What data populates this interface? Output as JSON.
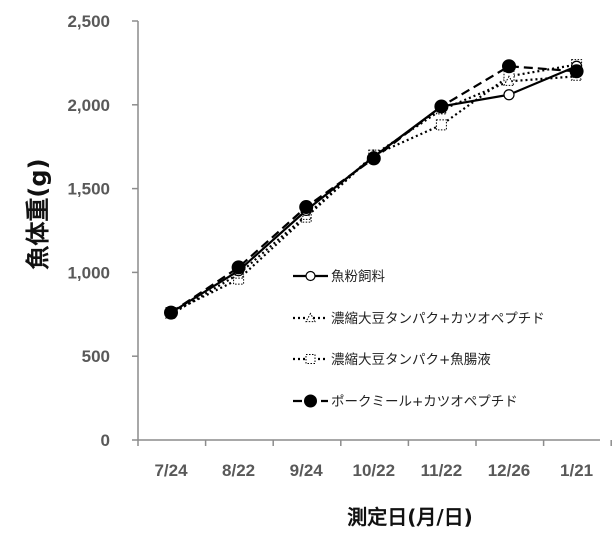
{
  "chart_data": {
    "type": "line",
    "xlabel": "測定日(月/日)",
    "ylabel": "魚体重(g)",
    "categories": [
      "7/24",
      "8/22",
      "9/24",
      "10/22",
      "11/22",
      "12/26",
      "1/21"
    ],
    "ylim": [
      0,
      2500
    ],
    "yticks": [
      0,
      500,
      1000,
      1500,
      2000,
      2500
    ],
    "ytick_labels": [
      "0",
      "500",
      "1,000",
      "1,500",
      "2,000",
      "2,500"
    ],
    "grid": false,
    "legend_position": "center-right",
    "series": [
      {
        "name": "魚粉飼料",
        "values": [
          760,
          1010,
          1370,
          1690,
          1990,
          2060,
          2230
        ],
        "line": "solid",
        "marker": "circle-open",
        "color": "#000000"
      },
      {
        "name": "濃縮大豆タンパク+カツオペプチド",
        "values": [
          750,
          990,
          1340,
          1700,
          1970,
          2140,
          2170
        ],
        "line": "dotted",
        "marker": "triangle-open",
        "color": "#000000"
      },
      {
        "name": "濃縮大豆タンパク+魚腸液",
        "values": [
          760,
          960,
          1330,
          1700,
          1880,
          2170,
          2240
        ],
        "line": "dotted",
        "marker": "square-open",
        "color": "#000000"
      },
      {
        "name": "ポークミール+カツオペプチド",
        "values": [
          760,
          1030,
          1390,
          1680,
          1990,
          2230,
          2200
        ],
        "line": "dashed",
        "marker": "circle-filled",
        "color": "#000000"
      }
    ]
  }
}
